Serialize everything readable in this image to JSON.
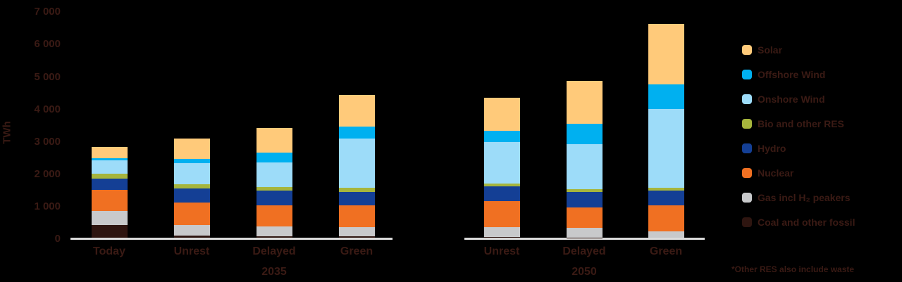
{
  "chart_data": {
    "type": "bar",
    "stacked": true,
    "title": "",
    "ylabel": "TWh",
    "xlabel": "",
    "ylim": [
      0,
      7000
    ],
    "yticks": [
      "0",
      "1 000",
      "2 000",
      "3 000",
      "4 000",
      "5 000",
      "6 000",
      "7 000"
    ],
    "groups": [
      {
        "label": "2035",
        "categories": [
          "Today",
          "Unrest",
          "Delayed",
          "Green"
        ]
      },
      {
        "label": "2050",
        "categories": [
          "Unrest",
          "Delayed",
          "Green"
        ]
      }
    ],
    "categories": [
      "Today",
      "Unrest 2035",
      "Delayed 2035",
      "Green 2035",
      "Unrest 2050",
      "Delayed 2050",
      "Green 2050"
    ],
    "series": [
      {
        "name": "Coal and other fossil",
        "color": "#2E1510",
        "values": [
          390,
          60,
          50,
          40,
          30,
          10,
          0
        ]
      },
      {
        "name": "Gas incl H2 peakers",
        "color": "#C8C9CB",
        "values": [
          430,
          330,
          300,
          280,
          300,
          300,
          200
        ]
      },
      {
        "name": "Nuclear",
        "color": "#F07022",
        "values": [
          650,
          690,
          650,
          670,
          800,
          630,
          800
        ]
      },
      {
        "name": "Hydro",
        "color": "#143F95",
        "values": [
          350,
          430,
          460,
          430,
          460,
          460,
          460
        ]
      },
      {
        "name": "Bio and other RES",
        "color": "#A6B53C",
        "values": [
          150,
          130,
          110,
          130,
          90,
          90,
          90
        ]
      },
      {
        "name": "Onshore Wind",
        "color": "#9DDCF9",
        "values": [
          410,
          650,
          760,
          1500,
          1280,
          1390,
          2410
        ]
      },
      {
        "name": "Offshore Wind",
        "color": "#00B0F0",
        "values": [
          70,
          130,
          300,
          370,
          330,
          630,
          760
        ]
      },
      {
        "name": "Solar",
        "color": "#FFCA7A",
        "values": [
          350,
          650,
          760,
          980,
          1020,
          1320,
          1870
        ]
      }
    ],
    "legend": {
      "position": "right",
      "entries": [
        "Solar",
        "Offshore Wind",
        "Onshore Wind",
        "Bio and other RES",
        "Hydro",
        "Nuclear",
        "Gas incl H2 peakers",
        "Coal and other fossil"
      ]
    },
    "grid": false,
    "footnote": "*Other RES also include waste"
  },
  "axis": {
    "ylabel": "TWh",
    "yticks": [
      "0",
      "1 000",
      "2 000",
      "3 000",
      "4 000",
      "5 000",
      "6 000",
      "7 000"
    ]
  },
  "xlabels": [
    "Today",
    "Unrest",
    "Delayed",
    "Green",
    "Unrest",
    "Delayed",
    "Green"
  ],
  "group_labels": [
    "2035",
    "2050"
  ],
  "legend": [
    {
      "label": "Solar",
      "color": "#FFCA7A"
    },
    {
      "label": "Offshore Wind",
      "color": "#00B0F0"
    },
    {
      "label": "Onshore Wind",
      "color": "#9DDCF9"
    },
    {
      "label": "Bio and other RES",
      "color": "#A6B53C"
    },
    {
      "label": "Hydro",
      "color": "#143F95"
    },
    {
      "label": "Nuclear",
      "color": "#F07022"
    },
    {
      "label": "Gas incl H₂ peakers",
      "color": "#C8C9CB"
    },
    {
      "label": "Coal and other fossil",
      "color": "#2E1510"
    }
  ],
  "footnote": "*Other RES also include waste"
}
